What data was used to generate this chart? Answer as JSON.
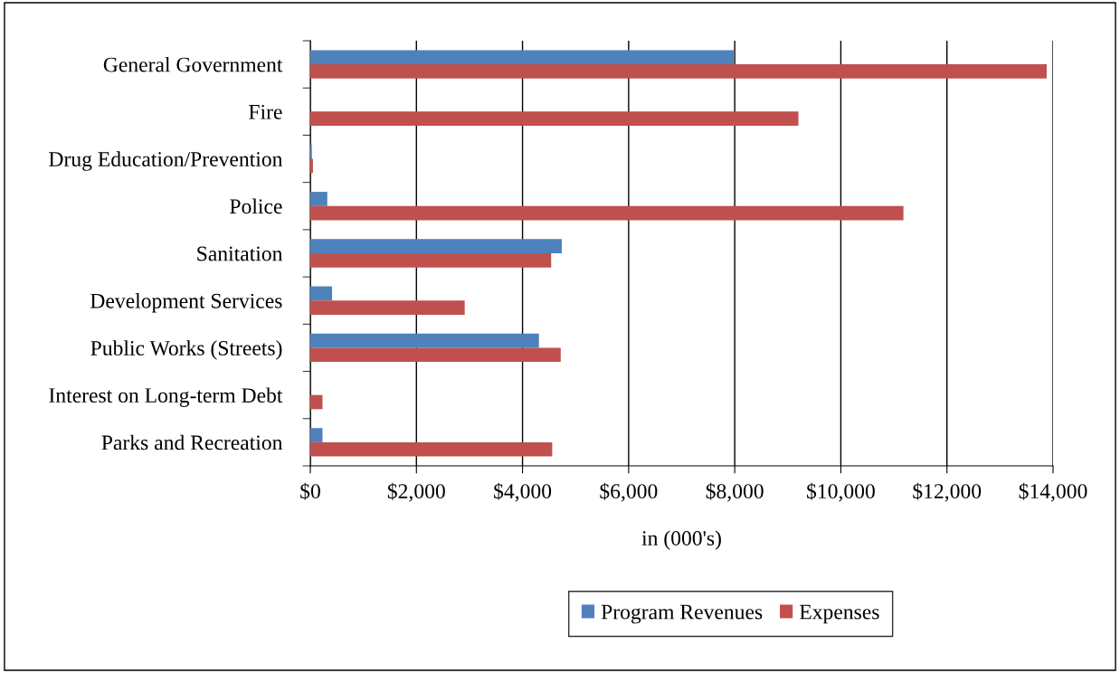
{
  "chart_data": {
    "type": "bar",
    "orientation": "horizontal",
    "xlabel": "in (000's)",
    "categories": [
      "General Government",
      "Fire",
      "Drug Education/Prevention",
      "Police",
      "Sanitation",
      "Development Services",
      "Public Works (Streets)",
      "Interest on Long-term Debt",
      "Parks and Recreation"
    ],
    "series": [
      {
        "name": "Program Revenues",
        "color": "#4f81bd",
        "values": [
          7980,
          0,
          30,
          320,
          4740,
          410,
          4310,
          0,
          230
        ]
      },
      {
        "name": "Expenses",
        "color": "#c0504d",
        "values": [
          13880,
          9200,
          50,
          11180,
          4540,
          2910,
          4720,
          230,
          4560
        ]
      }
    ],
    "xlim": [
      0,
      14000
    ],
    "xticks": [
      {
        "value": 0,
        "label": "$0"
      },
      {
        "value": 2000,
        "label": "$2,000"
      },
      {
        "value": 4000,
        "label": "$4,000"
      },
      {
        "value": 6000,
        "label": "$6,000"
      },
      {
        "value": 8000,
        "label": "$8,000"
      },
      {
        "value": 10000,
        "label": "$10,000"
      },
      {
        "value": 12000,
        "label": "$12,000"
      },
      {
        "value": 14000,
        "label": "$14,000"
      }
    ],
    "grid": "x",
    "legend": "bottom"
  }
}
